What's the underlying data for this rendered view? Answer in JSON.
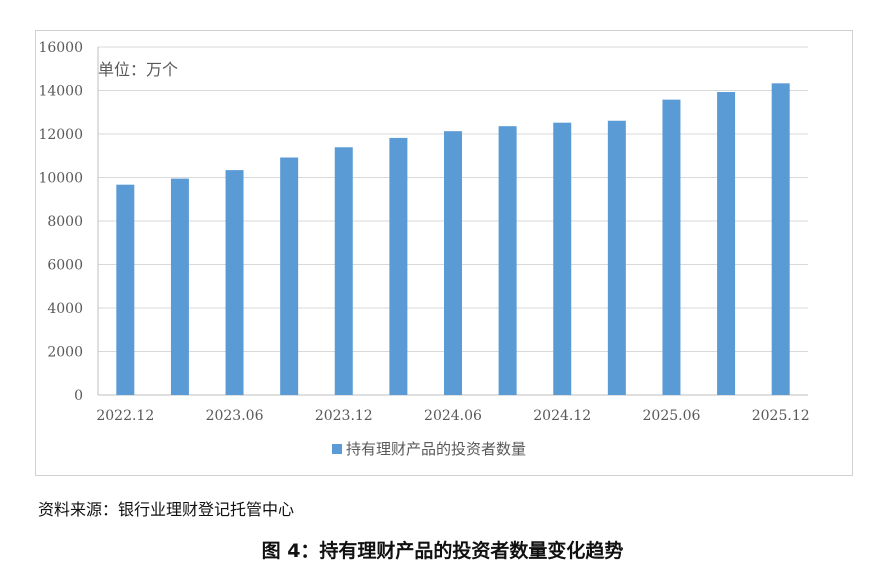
{
  "chart_data": {
    "type": "bar",
    "categories": [
      "2022.12",
      "2023.03",
      "2023.06",
      "2023.09",
      "2023.12",
      "2024.03",
      "2024.06",
      "2024.09",
      "2024.12",
      "2025.03",
      "2025.06",
      "2025.09",
      "2025.12"
    ],
    "x_tick_labels": [
      "2022.12",
      "2023.06",
      "2023.12",
      "2024.06",
      "2024.12",
      "2025.06",
      "2025.12"
    ],
    "series": [
      {
        "name": "持有理财产品的投资者数量",
        "values": [
          9670,
          9950,
          10340,
          10920,
          11390,
          11820,
          12130,
          12360,
          12520,
          12610,
          13580,
          13930,
          14330
        ]
      }
    ],
    "unit_label": "单位：万个",
    "ylim": [
      0,
      16000
    ],
    "yticks": [
      0,
      2000,
      4000,
      6000,
      8000,
      10000,
      12000,
      14000,
      16000
    ],
    "grid": true,
    "legend_position": "bottom",
    "colors": {
      "bar": "#5b9bd5",
      "grid": "#d9d9d9",
      "axis": "#bfbfbf",
      "text": "#595959"
    }
  },
  "source": "资料来源：银行业理财登记托管中心",
  "caption": "图 4：持有理财产品的投资者数量变化趋势"
}
